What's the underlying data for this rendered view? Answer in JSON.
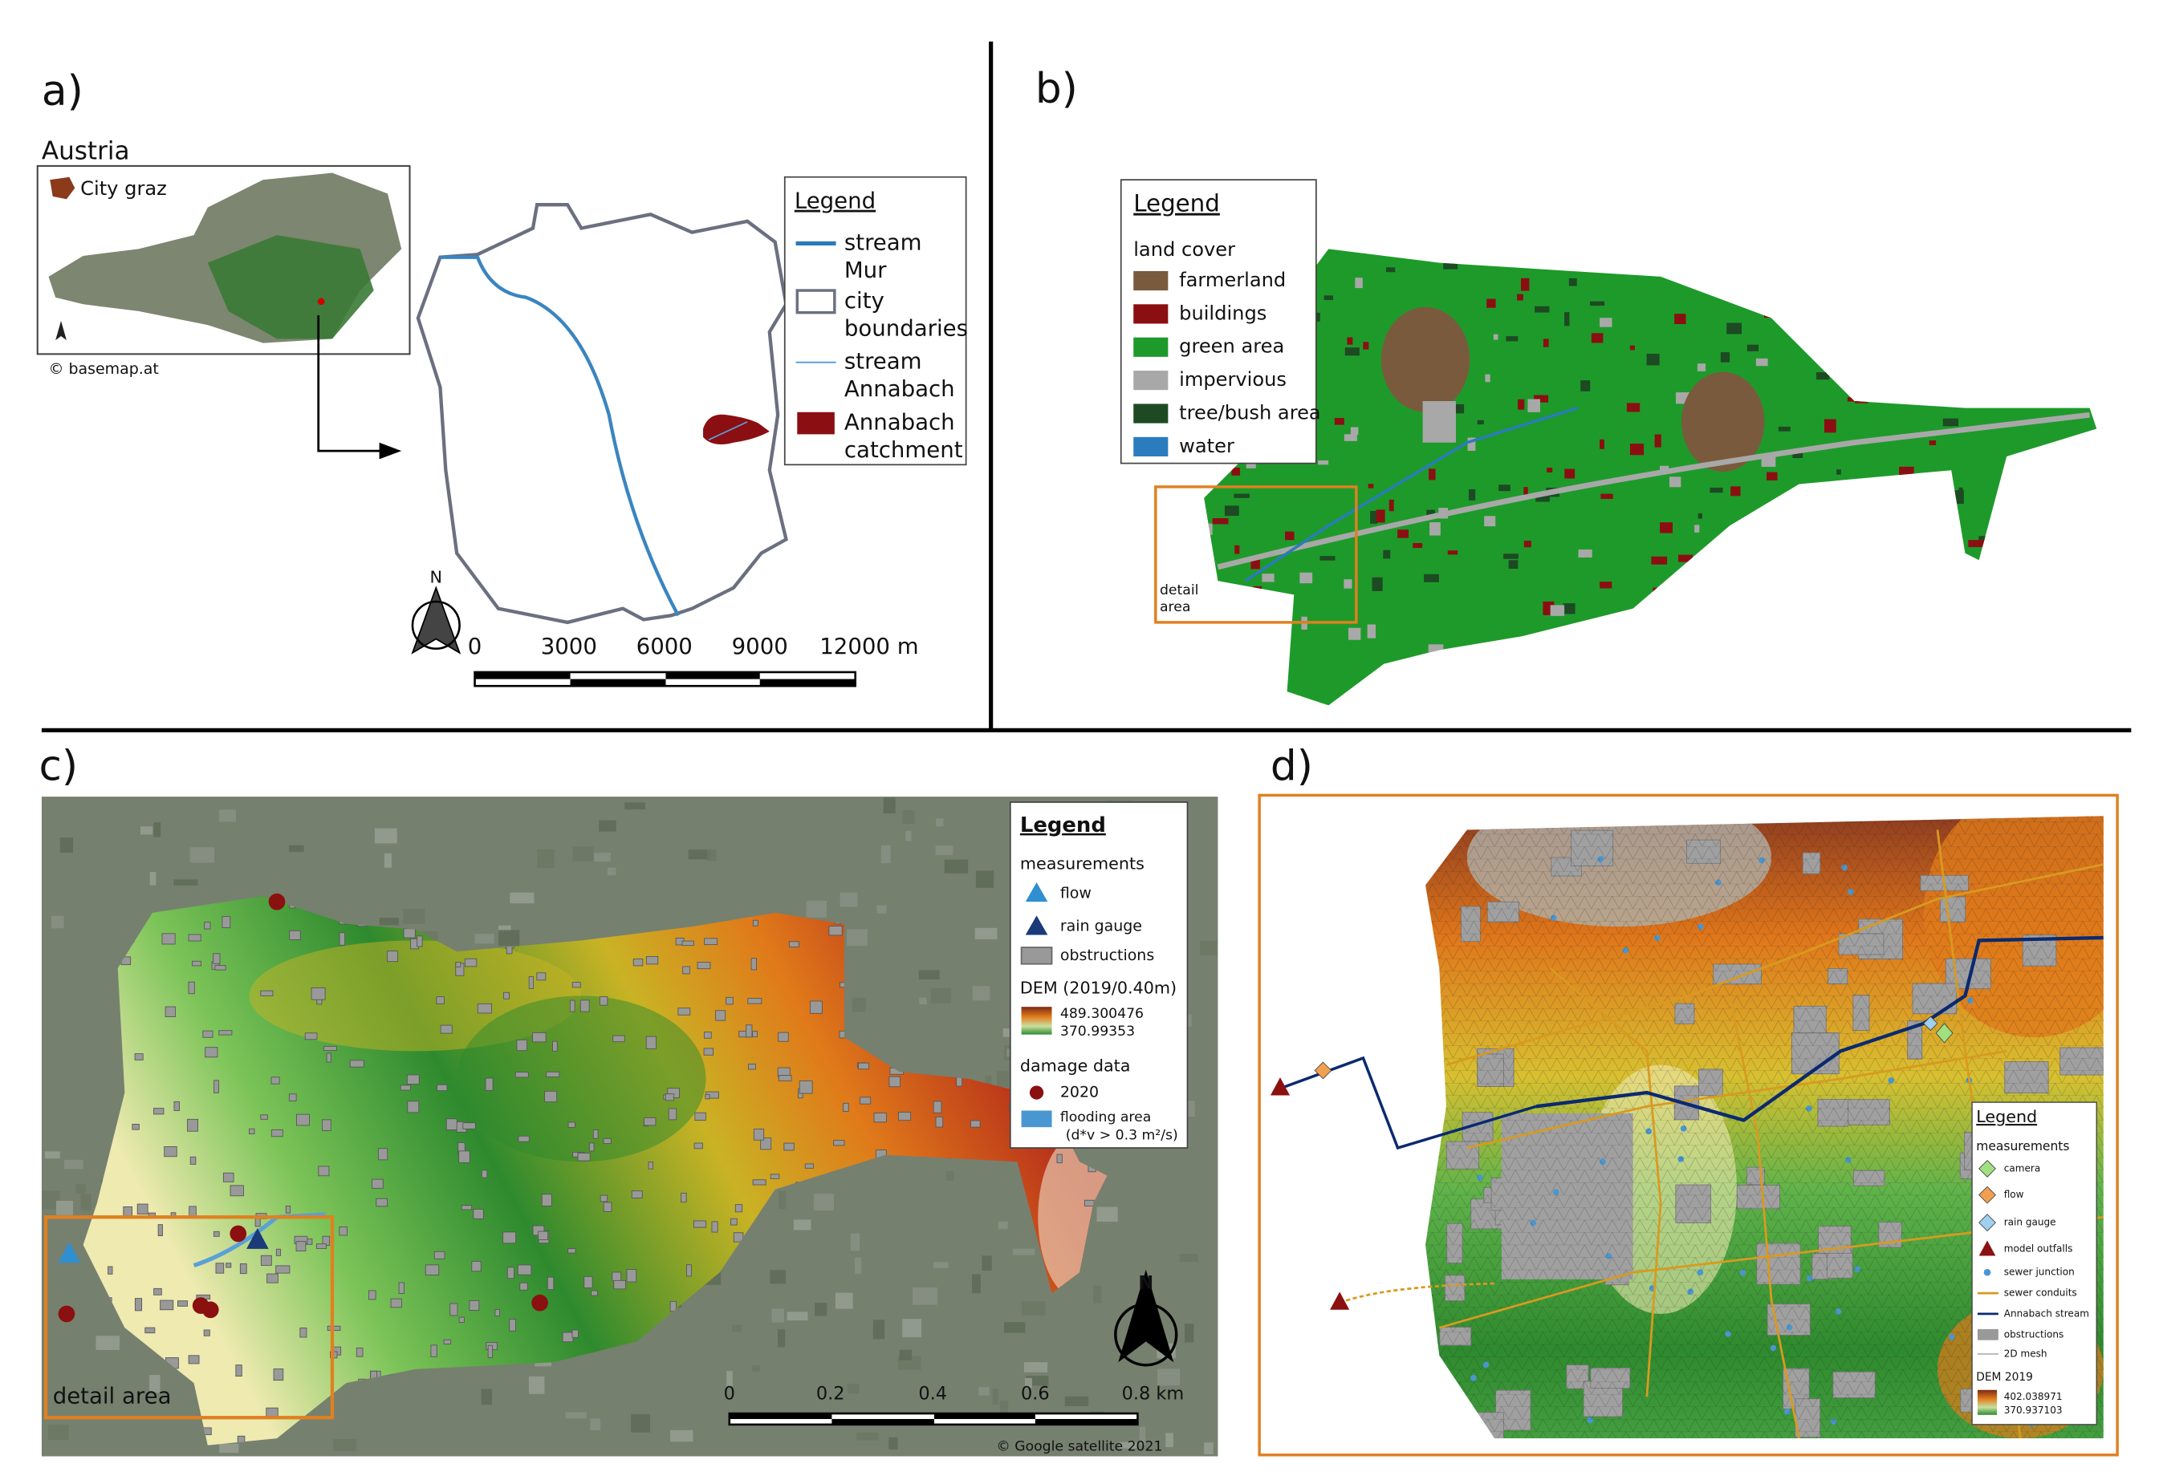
{
  "panel_a": {
    "label": "a)",
    "inset": {
      "title": "Austria",
      "legend": "City graz",
      "credit": "© basemap.at"
    },
    "north": "N",
    "legend": {
      "title": "Legend",
      "items": [
        [
          "stream",
          "Mur"
        ],
        [
          "city",
          "boundaries"
        ],
        [
          "stream",
          "Annabach"
        ],
        [
          "Annabach",
          "catchment"
        ]
      ]
    },
    "scale": [
      "0",
      "3000",
      "6000",
      "9000",
      "12000 m"
    ]
  },
  "panel_b": {
    "label": "b)",
    "legend": {
      "title": "Legend",
      "subtitle": "land cover",
      "items": [
        "farmerland",
        "buildings",
        "green area",
        "impervious",
        "tree/bush area",
        "water"
      ]
    },
    "detail": [
      "detail",
      "area"
    ]
  },
  "panel_c": {
    "label": "c)",
    "legend": {
      "title": "Legend",
      "measurements": "measurements",
      "flow": "flow",
      "rain_gauge": "rain gauge",
      "obstructions": "obstructions",
      "dem": "DEM (2019/0.40m)",
      "dem_max": "489.300476",
      "dem_min": "370.99353",
      "damage": "damage data",
      "year": "2020",
      "flooding": [
        "flooding area",
        "(d*v > 0.3 m²/s)"
      ]
    },
    "detail": "detail area",
    "north": "N",
    "scale": [
      "0",
      "0.2",
      "0.4",
      "0.6",
      "0.8 km"
    ],
    "credit": "© Google satellite 2021"
  },
  "panel_d": {
    "label": "d)",
    "legend": {
      "title": "Legend",
      "subtitle": "measurements",
      "items": [
        "camera",
        "flow",
        "rain gauge",
        "model outfalls",
        "sewer junction",
        "sewer conduits",
        "Annabach stream",
        "obstructions",
        "2D mesh"
      ],
      "dem": "DEM 2019",
      "dem_max": "402.038971",
      "dem_min": "370.937103"
    }
  }
}
